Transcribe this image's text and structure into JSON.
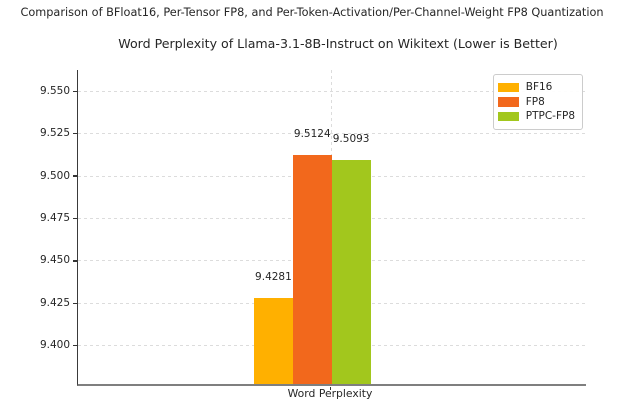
{
  "chart_data": {
    "type": "bar",
    "suptitle": "Comparison of BFloat16, Per-Tensor FP8, and Per-Token-Activation/Per-Channel-Weight FP8 Quantization",
    "title": "Word Perplexity of Llama-3.1-8B-Instruct on Wikitext (Lower is Better)",
    "categories": [
      "Word Perplexity"
    ],
    "xlabel": "Word Perplexity",
    "ylabel": "",
    "series": [
      {
        "name": "BF16",
        "values": [
          9.4281
        ],
        "value_labels": [
          "9.4281"
        ],
        "color": "#FFB000"
      },
      {
        "name": "FP8",
        "values": [
          9.5124
        ],
        "value_labels": [
          "9.5124"
        ],
        "color": "#F2681C"
      },
      {
        "name": "PTPC-FP8",
        "values": [
          9.5093
        ],
        "value_labels": [
          "9.5093"
        ],
        "color": "#A2C71D"
      }
    ],
    "ylim": [
      9.3775,
      9.5625
    ],
    "yticks": [
      {
        "value": 9.4,
        "label": "9.400"
      },
      {
        "value": 9.425,
        "label": "9.425"
      },
      {
        "value": 9.45,
        "label": "9.450"
      },
      {
        "value": 9.475,
        "label": "9.475"
      },
      {
        "value": 9.5,
        "label": "9.500"
      },
      {
        "value": 9.525,
        "label": "9.525"
      },
      {
        "value": 9.55,
        "label": "9.550"
      }
    ],
    "grid": true,
    "grid_style": "dashed",
    "legend": {
      "position": "upper right",
      "entries": [
        "BF16",
        "FP8",
        "PTPC-FP8"
      ]
    },
    "colors": {
      "grid": "#dcdcdc",
      "text": "#262626",
      "left_spine": "#3a3a3a",
      "bottom_spine": "#7f7f7f"
    }
  }
}
